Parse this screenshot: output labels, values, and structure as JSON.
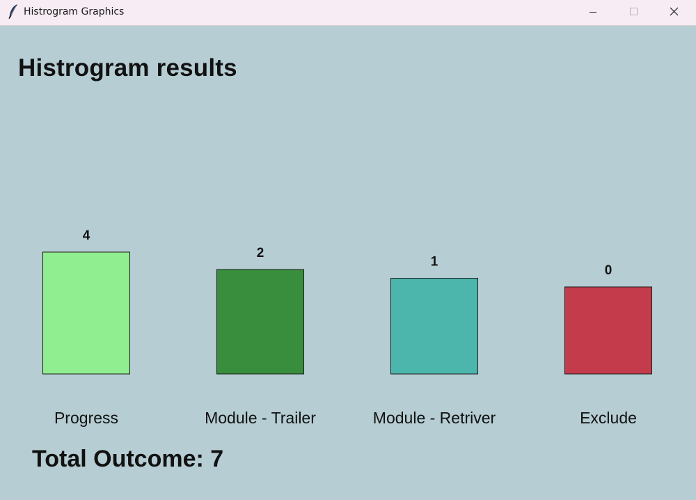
{
  "window": {
    "title": "Histrogram Graphics",
    "background": "#b5cdd3",
    "titlebar_background": "#f7ecf4"
  },
  "heading": "Histrogram results",
  "chart_data": {
    "type": "bar",
    "title": "Histrogram results",
    "categories": [
      "Progress",
      "Module - Trailer",
      "Module - Retriver",
      "Exclude"
    ],
    "values": [
      4,
      2,
      1,
      0
    ],
    "colors": [
      "#90ee90",
      "#388e3c",
      "#4db6ac",
      "#c43c4c"
    ],
    "value_labels": [
      "4",
      "2",
      "1",
      "0"
    ],
    "xlabel": "",
    "ylabel": "",
    "grid": false,
    "legend": false
  },
  "summary": {
    "total_label": "Total Outcome: 7"
  },
  "icons": {
    "app": "feather-icon",
    "minimize": "minimize-icon",
    "maximize": "maximize-icon",
    "close": "close-icon"
  }
}
